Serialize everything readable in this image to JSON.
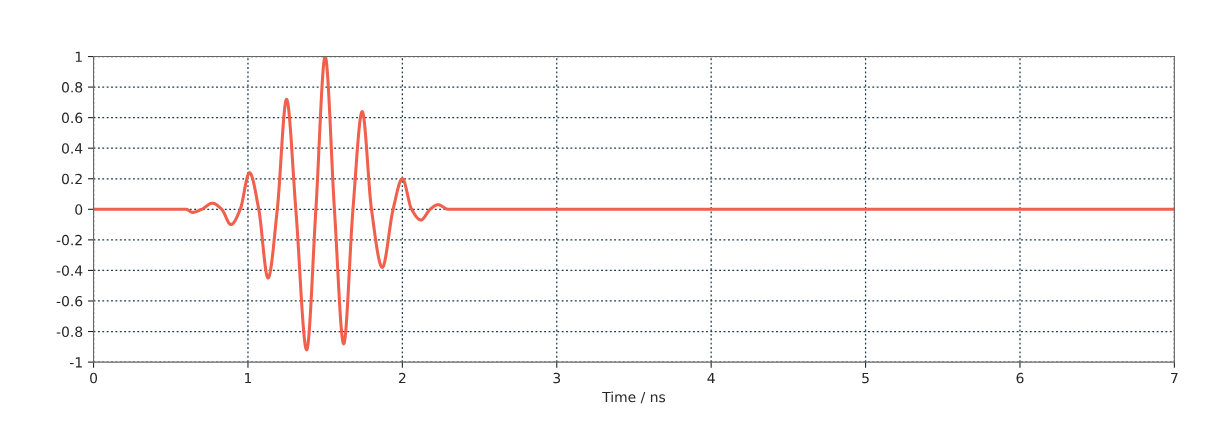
{
  "chart_data": {
    "type": "line",
    "xlabel": "Time / ns",
    "series": [
      {
        "color": "#f0604c",
        "x": [
          0,
          0.6,
          0.64,
          0.7,
          0.77,
          0.83,
          0.89,
          0.95,
          1.01,
          1.07,
          1.13,
          1.19,
          1.25,
          1.31,
          1.38,
          1.44,
          1.5,
          1.56,
          1.62,
          1.68,
          1.74,
          1.8,
          1.87,
          1.94,
          2.0,
          2.06,
          2.12,
          2.18,
          2.23,
          2.3,
          2.4,
          7
        ],
        "values": [
          0,
          0,
          -0.02,
          0,
          0.04,
          0,
          -0.1,
          0,
          0.24,
          0,
          -0.45,
          0,
          0.72,
          0,
          -0.92,
          0,
          1.0,
          0,
          -0.88,
          0,
          0.64,
          0,
          -0.38,
          0,
          0.2,
          0,
          -0.07,
          0,
          0.03,
          0,
          0,
          0
        ]
      }
    ],
    "xlim": [
      0,
      7
    ],
    "xticks": [
      0,
      1,
      2,
      3,
      4,
      5,
      6,
      7
    ],
    "ylim": [
      -1,
      1
    ],
    "yticks": [
      -1,
      -0.8,
      -0.6,
      -0.4,
      -0.2,
      0,
      0.2,
      0.4,
      0.6,
      0.8,
      1
    ],
    "grid": true,
    "legend": false
  }
}
